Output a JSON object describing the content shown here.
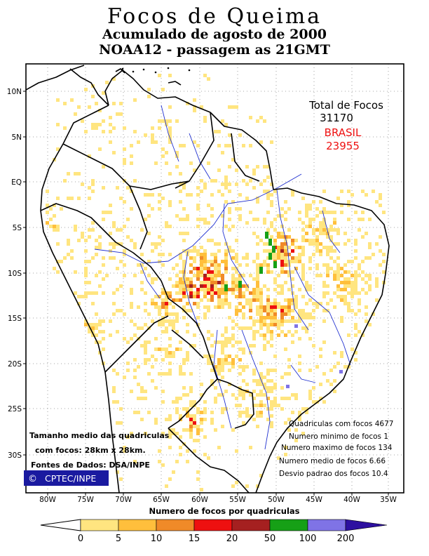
{
  "title": {
    "line1": "Focos de Queima",
    "line2": "Acumulado de agosto de 2000",
    "line3": "NOAA12 - passagem as 21GMT"
  },
  "totals": {
    "label": "Total de Focos",
    "value": "31170",
    "country": "BRASIL",
    "country_value": "23955"
  },
  "stats": [
    "Quadriculas com focos 4677",
    "Numero minimo de focos 1",
    "Numero maximo de focos 134",
    "Numero medio de focos 6.66",
    "Desvio padrao dos focos 10.4"
  ],
  "cell_note": {
    "line1": "Tamanho medio das quadriculas",
    "line2": "com focos: 28km x 28km.",
    "line3": "Fontes de Dados: DSA/INPE"
  },
  "logo": {
    "symbol": "©",
    "text": "CPTEC/INPE"
  },
  "lat_labels": [
    "10N",
    "5N",
    "EQ",
    "5S",
    "10S",
    "15S",
    "20S",
    "25S",
    "30S"
  ],
  "lon_labels": [
    "80W",
    "75W",
    "70W",
    "65W",
    "60W",
    "55W",
    "50W",
    "45W",
    "40W",
    "35W"
  ],
  "legend": {
    "title": "Numero de focos por quadriculas",
    "ticks": [
      "0",
      "5",
      "10",
      "15",
      "20",
      "50",
      "100",
      "200"
    ],
    "colors": [
      "#ffffff",
      "#ffe580",
      "#ffbf3c",
      "#f08a28",
      "#ee1010",
      "#a52020",
      "#16a016",
      "#7f73e6",
      "#2d10a0"
    ]
  },
  "colors": {
    "border": "#000000",
    "rivers": "#2030d0",
    "grid": "#888888",
    "brasil_text": "#ee1111",
    "logo_bg": "#1a1aa0"
  }
}
